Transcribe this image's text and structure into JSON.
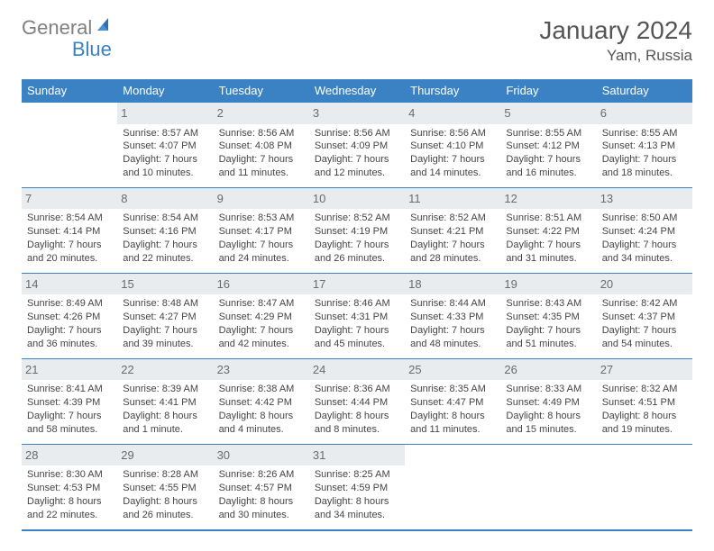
{
  "logo": {
    "general": "General",
    "blue": "Blue"
  },
  "title": "January 2024",
  "location": "Yam, Russia",
  "weekdays": [
    "Sunday",
    "Monday",
    "Tuesday",
    "Wednesday",
    "Thursday",
    "Friday",
    "Saturday"
  ],
  "colors": {
    "accent": "#3b82c4",
    "header_text": "#ffffff",
    "daynum_bg": "#e9ecef",
    "body_text": "#454545",
    "background": "#ffffff"
  },
  "layout": {
    "cols": 7,
    "rows": 5,
    "blank_leading": 1,
    "blank_trailing": 3
  },
  "days": {
    "1": {
      "sunrise": "Sunrise: 8:57 AM",
      "sunset": "Sunset: 4:07 PM",
      "day_a": "Daylight: 7 hours",
      "day_b": "and 10 minutes."
    },
    "2": {
      "sunrise": "Sunrise: 8:56 AM",
      "sunset": "Sunset: 4:08 PM",
      "day_a": "Daylight: 7 hours",
      "day_b": "and 11 minutes."
    },
    "3": {
      "sunrise": "Sunrise: 8:56 AM",
      "sunset": "Sunset: 4:09 PM",
      "day_a": "Daylight: 7 hours",
      "day_b": "and 12 minutes."
    },
    "4": {
      "sunrise": "Sunrise: 8:56 AM",
      "sunset": "Sunset: 4:10 PM",
      "day_a": "Daylight: 7 hours",
      "day_b": "and 14 minutes."
    },
    "5": {
      "sunrise": "Sunrise: 8:55 AM",
      "sunset": "Sunset: 4:12 PM",
      "day_a": "Daylight: 7 hours",
      "day_b": "and 16 minutes."
    },
    "6": {
      "sunrise": "Sunrise: 8:55 AM",
      "sunset": "Sunset: 4:13 PM",
      "day_a": "Daylight: 7 hours",
      "day_b": "and 18 minutes."
    },
    "7": {
      "sunrise": "Sunrise: 8:54 AM",
      "sunset": "Sunset: 4:14 PM",
      "day_a": "Daylight: 7 hours",
      "day_b": "and 20 minutes."
    },
    "8": {
      "sunrise": "Sunrise: 8:54 AM",
      "sunset": "Sunset: 4:16 PM",
      "day_a": "Daylight: 7 hours",
      "day_b": "and 22 minutes."
    },
    "9": {
      "sunrise": "Sunrise: 8:53 AM",
      "sunset": "Sunset: 4:17 PM",
      "day_a": "Daylight: 7 hours",
      "day_b": "and 24 minutes."
    },
    "10": {
      "sunrise": "Sunrise: 8:52 AM",
      "sunset": "Sunset: 4:19 PM",
      "day_a": "Daylight: 7 hours",
      "day_b": "and 26 minutes."
    },
    "11": {
      "sunrise": "Sunrise: 8:52 AM",
      "sunset": "Sunset: 4:21 PM",
      "day_a": "Daylight: 7 hours",
      "day_b": "and 28 minutes."
    },
    "12": {
      "sunrise": "Sunrise: 8:51 AM",
      "sunset": "Sunset: 4:22 PM",
      "day_a": "Daylight: 7 hours",
      "day_b": "and 31 minutes."
    },
    "13": {
      "sunrise": "Sunrise: 8:50 AM",
      "sunset": "Sunset: 4:24 PM",
      "day_a": "Daylight: 7 hours",
      "day_b": "and 34 minutes."
    },
    "14": {
      "sunrise": "Sunrise: 8:49 AM",
      "sunset": "Sunset: 4:26 PM",
      "day_a": "Daylight: 7 hours",
      "day_b": "and 36 minutes."
    },
    "15": {
      "sunrise": "Sunrise: 8:48 AM",
      "sunset": "Sunset: 4:27 PM",
      "day_a": "Daylight: 7 hours",
      "day_b": "and 39 minutes."
    },
    "16": {
      "sunrise": "Sunrise: 8:47 AM",
      "sunset": "Sunset: 4:29 PM",
      "day_a": "Daylight: 7 hours",
      "day_b": "and 42 minutes."
    },
    "17": {
      "sunrise": "Sunrise: 8:46 AM",
      "sunset": "Sunset: 4:31 PM",
      "day_a": "Daylight: 7 hours",
      "day_b": "and 45 minutes."
    },
    "18": {
      "sunrise": "Sunrise: 8:44 AM",
      "sunset": "Sunset: 4:33 PM",
      "day_a": "Daylight: 7 hours",
      "day_b": "and 48 minutes."
    },
    "19": {
      "sunrise": "Sunrise: 8:43 AM",
      "sunset": "Sunset: 4:35 PM",
      "day_a": "Daylight: 7 hours",
      "day_b": "and 51 minutes."
    },
    "20": {
      "sunrise": "Sunrise: 8:42 AM",
      "sunset": "Sunset: 4:37 PM",
      "day_a": "Daylight: 7 hours",
      "day_b": "and 54 minutes."
    },
    "21": {
      "sunrise": "Sunrise: 8:41 AM",
      "sunset": "Sunset: 4:39 PM",
      "day_a": "Daylight: 7 hours",
      "day_b": "and 58 minutes."
    },
    "22": {
      "sunrise": "Sunrise: 8:39 AM",
      "sunset": "Sunset: 4:41 PM",
      "day_a": "Daylight: 8 hours",
      "day_b": "and 1 minute."
    },
    "23": {
      "sunrise": "Sunrise: 8:38 AM",
      "sunset": "Sunset: 4:42 PM",
      "day_a": "Daylight: 8 hours",
      "day_b": "and 4 minutes."
    },
    "24": {
      "sunrise": "Sunrise: 8:36 AM",
      "sunset": "Sunset: 4:44 PM",
      "day_a": "Daylight: 8 hours",
      "day_b": "and 8 minutes."
    },
    "25": {
      "sunrise": "Sunrise: 8:35 AM",
      "sunset": "Sunset: 4:47 PM",
      "day_a": "Daylight: 8 hours",
      "day_b": "and 11 minutes."
    },
    "26": {
      "sunrise": "Sunrise: 8:33 AM",
      "sunset": "Sunset: 4:49 PM",
      "day_a": "Daylight: 8 hours",
      "day_b": "and 15 minutes."
    },
    "27": {
      "sunrise": "Sunrise: 8:32 AM",
      "sunset": "Sunset: 4:51 PM",
      "day_a": "Daylight: 8 hours",
      "day_b": "and 19 minutes."
    },
    "28": {
      "sunrise": "Sunrise: 8:30 AM",
      "sunset": "Sunset: 4:53 PM",
      "day_a": "Daylight: 8 hours",
      "day_b": "and 22 minutes."
    },
    "29": {
      "sunrise": "Sunrise: 8:28 AM",
      "sunset": "Sunset: 4:55 PM",
      "day_a": "Daylight: 8 hours",
      "day_b": "and 26 minutes."
    },
    "30": {
      "sunrise": "Sunrise: 8:26 AM",
      "sunset": "Sunset: 4:57 PM",
      "day_a": "Daylight: 8 hours",
      "day_b": "and 30 minutes."
    },
    "31": {
      "sunrise": "Sunrise: 8:25 AM",
      "sunset": "Sunset: 4:59 PM",
      "day_a": "Daylight: 8 hours",
      "day_b": "and 34 minutes."
    }
  }
}
